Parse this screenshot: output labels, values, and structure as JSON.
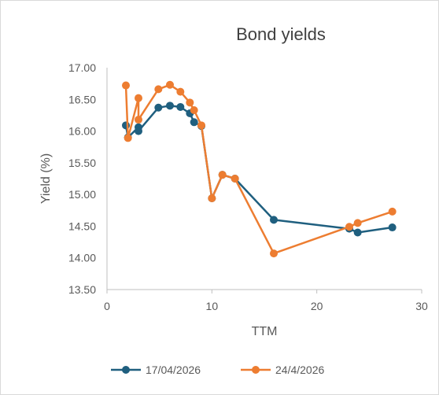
{
  "chart_data": {
    "type": "line",
    "title": "Bond yields",
    "xlabel": "TTM",
    "ylabel": "Yield (%)",
    "xlim": [
      0,
      30
    ],
    "ylim": [
      13.5,
      17.0
    ],
    "x_ticks": [
      "0",
      "10",
      "20",
      "30"
    ],
    "y_ticks": [
      "13.50",
      "14.00",
      "14.50",
      "15.00",
      "15.50",
      "16.00",
      "16.50",
      "17.00"
    ],
    "grid": false,
    "legend_position": "bottom",
    "series": [
      {
        "name": "17/04/2026",
        "color": "#1f5f7f",
        "points": [
          [
            1.8,
            16.09
          ],
          [
            2.0,
            15.9
          ],
          [
            3.0,
            16.06
          ],
          [
            3.0,
            16.0
          ],
          [
            4.9,
            16.37
          ],
          [
            6.0,
            16.4
          ],
          [
            7.0,
            16.38
          ],
          [
            7.9,
            16.28
          ],
          [
            8.3,
            16.14
          ],
          [
            9.0,
            16.08
          ],
          [
            10.0,
            14.94
          ],
          [
            11.0,
            15.31
          ],
          [
            12.2,
            15.25
          ],
          [
            15.9,
            14.6
          ],
          [
            23.1,
            14.46
          ],
          [
            23.9,
            14.4
          ],
          [
            27.2,
            14.48
          ]
        ]
      },
      {
        "name": "24/4/2026",
        "color": "#ed7d31",
        "points": [
          [
            1.8,
            16.72
          ],
          [
            2.0,
            15.89
          ],
          [
            3.0,
            16.52
          ],
          [
            3.0,
            16.18
          ],
          [
            4.9,
            16.66
          ],
          [
            6.0,
            16.73
          ],
          [
            7.0,
            16.62
          ],
          [
            7.9,
            16.45
          ],
          [
            8.3,
            16.33
          ],
          [
            9.0,
            16.09
          ],
          [
            10.0,
            14.94
          ],
          [
            11.0,
            15.31
          ],
          [
            12.2,
            15.25
          ],
          [
            15.9,
            14.07
          ],
          [
            23.1,
            14.49
          ],
          [
            23.9,
            14.55
          ],
          [
            27.2,
            14.73
          ]
        ]
      }
    ]
  }
}
